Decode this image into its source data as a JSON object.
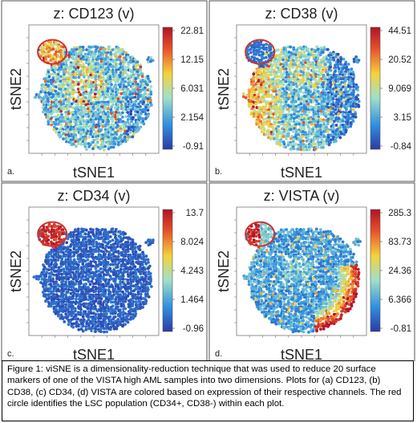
{
  "figure": {
    "caption": "Figure 1: viSNE is a dimensionality-reduction technique that was used to reduce 20 surface markers of one of the VISTA high AML samples into two dimensions. Plots for (a) CD123, (b) CD38, (c) CD34, (d) VISTA are colored based on expression of their respective channels. The red circle identifies the LSC population (CD34+, CD38-) within each plot."
  },
  "chart_data": [
    {
      "type": "scatter",
      "panel_label": "a.",
      "title": "z: CD123 (v)",
      "xlabel": "tSNE1",
      "ylabel": "tSNE2",
      "colorbar_ticks": [
        "22.81",
        "12.15",
        "6.031",
        "2.154",
        "-0.91"
      ],
      "colormap": [
        "#2b3aa8",
        "#2f8fe0",
        "#9fe0c8",
        "#f5d23a",
        "#e8532a",
        "#b0122a"
      ],
      "highlight": "LSC population (red circle)"
    },
    {
      "type": "scatter",
      "panel_label": "b.",
      "title": "z: CD38 (v)",
      "xlabel": "tSNE1",
      "ylabel": "tSNE2",
      "colorbar_ticks": [
        "44.51",
        "20.52",
        "9.069",
        "3.15",
        "-0.84"
      ],
      "colormap": [
        "#2b3aa8",
        "#2f8fe0",
        "#9fe0c8",
        "#f5d23a",
        "#e8532a",
        "#b0122a"
      ],
      "highlight": "LSC population (red circle)"
    },
    {
      "type": "scatter",
      "panel_label": "c.",
      "title": "z: CD34 (v)",
      "xlabel": "tSNE1",
      "ylabel": "tSNE2",
      "colorbar_ticks": [
        "13.7",
        "8.024",
        "4.243",
        "1.464",
        "-0.96"
      ],
      "colormap": [
        "#2b3aa8",
        "#2f8fe0",
        "#9fe0c8",
        "#f5d23a",
        "#e8532a",
        "#b0122a"
      ],
      "highlight": "LSC population (red circle)"
    },
    {
      "type": "scatter",
      "panel_label": "d.",
      "title": "z: VISTA (v)",
      "xlabel": "tSNE1",
      "ylabel": "tSNE2",
      "colorbar_ticks": [
        "285.3",
        "83.73",
        "24.36",
        "6.366",
        "-0.81"
      ],
      "colormap": [
        "#2b3aa8",
        "#2f8fe0",
        "#9fe0c8",
        "#f5d23a",
        "#e8532a",
        "#b0122a"
      ],
      "highlight": "LSC population (red circle)"
    }
  ]
}
